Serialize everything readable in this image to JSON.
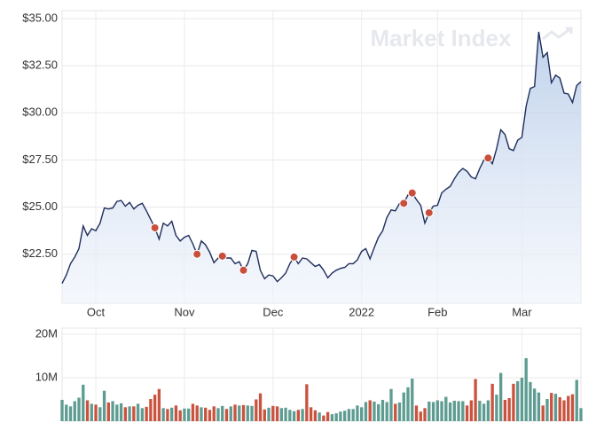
{
  "chart_data": [
    {
      "type": "line",
      "watermark": "Market Index",
      "categories": [
        null,
        null,
        null,
        null,
        null,
        null,
        null,
        null,
        "Oct",
        null,
        null,
        null,
        null,
        null,
        null,
        null,
        null,
        null,
        null,
        null,
        null,
        null,
        null,
        null,
        null,
        null,
        null,
        null,
        null,
        "Nov",
        null,
        null,
        null,
        null,
        null,
        null,
        null,
        null,
        null,
        null,
        null,
        null,
        null,
        null,
        null,
        null,
        null,
        null,
        null,
        null,
        "Dec",
        null,
        null,
        null,
        null,
        null,
        null,
        null,
        null,
        null,
        null,
        null,
        null,
        null,
        null,
        null,
        null,
        null,
        null,
        null,
        null,
        "2022",
        null,
        null,
        null,
        null,
        null,
        null,
        null,
        null,
        null,
        null,
        null,
        null,
        null,
        null,
        null,
        null,
        null,
        "Feb",
        null,
        null,
        null,
        null,
        null,
        null,
        null,
        null,
        null,
        null,
        null,
        null,
        null,
        null,
        null,
        null,
        null,
        null,
        null,
        "Mar",
        null,
        null,
        null,
        null,
        null,
        null,
        null,
        null,
        null,
        null,
        null,
        null,
        null,
        null
      ],
      "series": [
        {
          "color": "#1f2d5c",
          "values": [
            20.95,
            21.4,
            22.0,
            22.35,
            22.8,
            24.0,
            23.5,
            23.85,
            23.75,
            24.15,
            24.95,
            24.9,
            24.95,
            25.3,
            25.35,
            25.05,
            25.25,
            24.9,
            25.1,
            25.2,
            24.8,
            24.35,
            23.9,
            23.3,
            24.15,
            24.0,
            24.25,
            23.5,
            23.2,
            23.4,
            23.5,
            23.05,
            22.5,
            23.2,
            23.0,
            22.6,
            22.05,
            22.3,
            22.4,
            22.3,
            22.3,
            22.0,
            22.1,
            21.65,
            22.0,
            22.7,
            22.65,
            21.65,
            21.2,
            21.4,
            21.35,
            21.05,
            21.25,
            21.5,
            22.0,
            22.35,
            22.0,
            22.3,
            22.25,
            22.05,
            21.85,
            21.95,
            21.65,
            21.25,
            21.5,
            21.65,
            21.75,
            21.8,
            22.0,
            22.0,
            22.2,
            22.65,
            22.8,
            22.25,
            22.85,
            23.4,
            23.75,
            24.45,
            24.85,
            24.8,
            25.2,
            25.2,
            25.65,
            25.75,
            25.4,
            25.1,
            24.15,
            24.7,
            25.05,
            25.1,
            25.75,
            25.95,
            26.1,
            26.5,
            26.85,
            27.05,
            26.9,
            26.6,
            26.5,
            27.05,
            27.5,
            27.6,
            27.3,
            28.1,
            29.1,
            28.85,
            28.1,
            28.0,
            28.55,
            28.7,
            30.35,
            31.3,
            31.4,
            34.3,
            32.95,
            33.2,
            31.6,
            32.0,
            31.85,
            31.05,
            31.0,
            30.55,
            31.45,
            31.65
          ]
        },
        {
          "color": "#c94f3d",
          "values": [
            null,
            null,
            null,
            null,
            null,
            null,
            null,
            null,
            null,
            null,
            null,
            null,
            null,
            null,
            null,
            null,
            null,
            null,
            null,
            null,
            null,
            null,
            23.9,
            null,
            null,
            null,
            null,
            null,
            null,
            null,
            null,
            null,
            22.5,
            null,
            null,
            null,
            null,
            null,
            22.4,
            null,
            null,
            null,
            null,
            21.65,
            null,
            null,
            null,
            null,
            null,
            null,
            null,
            null,
            null,
            null,
            null,
            22.35,
            null,
            null,
            null,
            null,
            null,
            null,
            null,
            null,
            null,
            null,
            null,
            null,
            null,
            null,
            null,
            null,
            null,
            null,
            null,
            null,
            null,
            null,
            null,
            null,
            null,
            25.2,
            null,
            25.75,
            null,
            null,
            null,
            24.7,
            null,
            null,
            null,
            null,
            null,
            null,
            null,
            null,
            null,
            null,
            null,
            null,
            null,
            27.6,
            null,
            null,
            null,
            null,
            null,
            null,
            null,
            null,
            null,
            null,
            null,
            null,
            null,
            null,
            null,
            null,
            null,
            null,
            null,
            null,
            null,
            null
          ]
        }
      ],
      "ylim": [
        19.9,
        35
      ],
      "yticks": [
        {
          "value": 22.5,
          "label": "$22.50"
        },
        {
          "value": 25,
          "label": "$25.00"
        },
        {
          "value": 27.5,
          "label": "$27.50"
        },
        {
          "value": 30,
          "label": "$30.00"
        },
        {
          "value": 32.5,
          "label": "$32.50"
        },
        {
          "value": 35,
          "label": "$35.00"
        }
      ],
      "grid": true
    },
    {
      "type": "bar",
      "colors": {
        "up": "#5e9c92",
        "down": "#c9533f"
      },
      "values": [
        4.9,
        3.8,
        3.4,
        4.6,
        5.4,
        8.4,
        4.8,
        4.0,
        3.8,
        3.2,
        7.0,
        4.3,
        4.6,
        3.8,
        4.1,
        3.2,
        3.4,
        3.4,
        4.0,
        3.0,
        3.3,
        5.1,
        6.1,
        7.4,
        3.0,
        2.8,
        3.1,
        3.6,
        2.5,
        2.9,
        2.9,
        4.0,
        3.6,
        3.2,
        3.1,
        2.6,
        3.4,
        3.0,
        3.5,
        2.8,
        3.4,
        3.8,
        3.6,
        3.7,
        3.6,
        3.5,
        5.0,
        6.4,
        2.7,
        3.1,
        3.5,
        3.4,
        3.0,
        3.1,
        2.6,
        2.3,
        2.6,
        2.8,
        8.5,
        3.2,
        2.5,
        2.0,
        1.3,
        2.1,
        1.6,
        1.8,
        2.2,
        2.4,
        2.8,
        2.8,
        3.6,
        3.2,
        4.4,
        4.8,
        4.5,
        3.9,
        4.9,
        4.4,
        7.4,
        4.0,
        4.3,
        6.6,
        7.8,
        9.8,
        3.6,
        2.2,
        3.0,
        4.5,
        4.4,
        4.8,
        4.6,
        5.6,
        4.3,
        4.7,
        4.6,
        4.6,
        3.6,
        4.8,
        9.7,
        4.7,
        4.0,
        4.8,
        8.6,
        6.1,
        11.1,
        4.9,
        5.3,
        8.6,
        9.2,
        10.0,
        14.5,
        9.0,
        7.5,
        6.6,
        3.6,
        5.1,
        6.5,
        6.3,
        5.5,
        4.8,
        5.8,
        6.2,
        9.5,
        3.0
      ],
      "ylim": [
        0,
        20
      ],
      "yticks": [
        {
          "value": 10,
          "label": "10M"
        },
        {
          "value": 20,
          "label": "20M"
        }
      ],
      "grid": true
    }
  ]
}
